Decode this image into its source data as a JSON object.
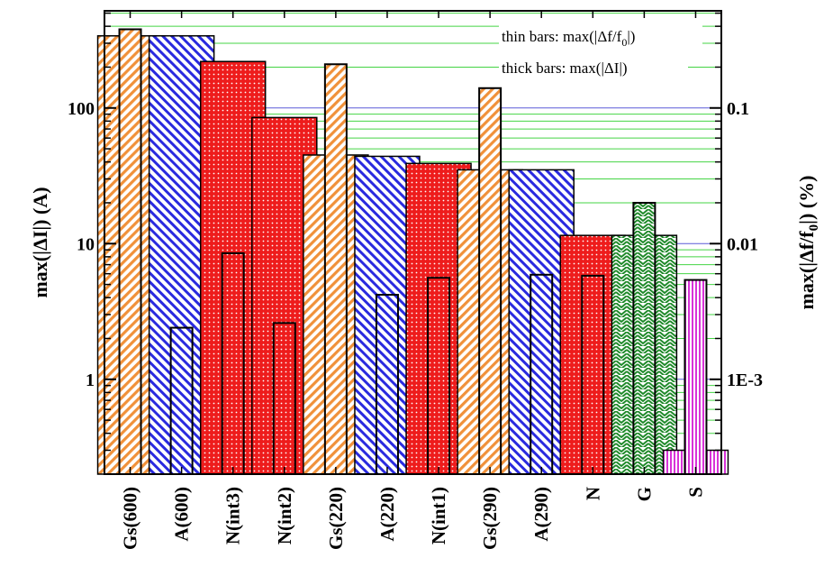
{
  "chart_data": {
    "type": "bar",
    "categories": [
      "Gs(600)",
      "A(600)",
      "N(int3)",
      "N(int2)",
      "Gs(220)",
      "A(220)",
      "N(int1)",
      "Gs(290)",
      "A(290)",
      "N",
      "G",
      "S"
    ],
    "ylabel_left": "max(|ΔI|) (A)",
    "ylabel_right": "max(|Δf/f0|) (%)",
    "left_axis": {
      "scale": "log",
      "ylim": [
        0.2,
        520
      ],
      "major_ticks": [
        1,
        10,
        100
      ],
      "major_tick_labels": [
        "1",
        "10",
        "100"
      ]
    },
    "right_axis": {
      "scale": "log",
      "ylim": [
        0.0002,
        0.52
      ],
      "major_ticks": [
        0.001,
        0.01,
        0.1
      ],
      "major_tick_labels": [
        "1E-3",
        "0.01",
        "0.1"
      ]
    },
    "grid": {
      "blue_lines_at_left_decades": true,
      "green_lines_at_right_minor_ticks": true
    },
    "legend": {
      "thin_prefix": "thin bars: max(|Δf/f",
      "thin_sub": "0",
      "thin_suffix": "|)",
      "thick": "thick bars: max(|ΔI|)",
      "placement": "top-right"
    },
    "series": [
      {
        "name": "thick bars: max(|ΔI|)",
        "values": [
          340,
          340,
          220,
          85,
          45,
          44,
          39,
          35,
          35,
          11.5,
          11.5,
          0.3
        ]
      },
      {
        "name": "thin bars: max(|Δf/f0|)",
        "values": [
          0.38,
          0.0024,
          0.0085,
          0.0026,
          0.21,
          0.0042,
          0.0056,
          0.14,
          0.0059,
          0.0058,
          0.02,
          0.0054
        ]
      }
    ],
    "patterns": [
      "orange-diagonal",
      "blue-diagonal",
      "red-dots",
      "red-dots",
      "orange-diagonal",
      "blue-diagonal",
      "red-dots",
      "orange-diagonal",
      "blue-diagonal",
      "red-dots",
      "green-chevron",
      "magenta-vertical"
    ],
    "colors": {
      "orange": "#f0913a",
      "blue": "#2a2adf",
      "red": "#ee1c1c",
      "green": "#1f8a2a",
      "magenta": "#d833d8",
      "grid_blue": "#5a5ad8",
      "grid_green": "#44d444"
    }
  }
}
